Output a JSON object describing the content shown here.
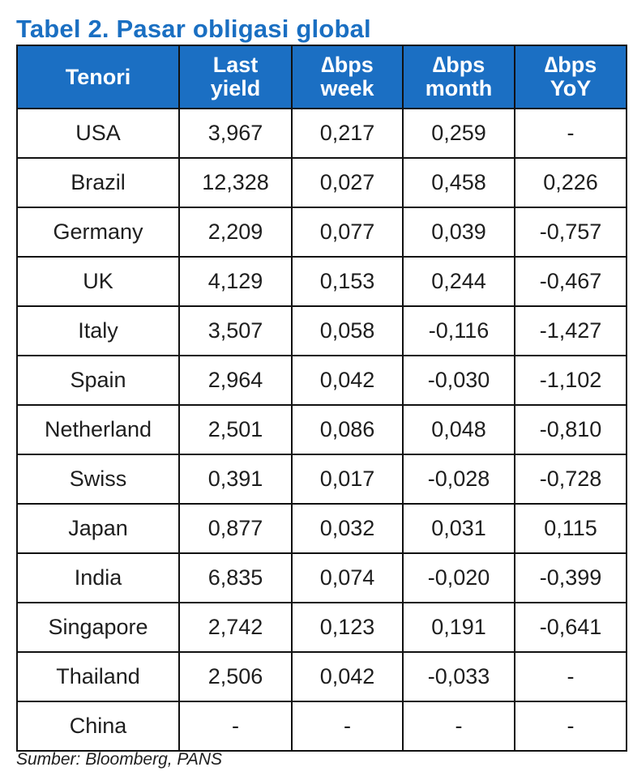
{
  "title": "Tabel 2. Pasar obligasi global",
  "colors": {
    "title": "#1a6fc2",
    "header_bg": "#1b6fc3",
    "header_text": "#ffffff",
    "border": "#111111"
  },
  "table": {
    "headers": [
      [
        "Tenori"
      ],
      [
        "Last",
        "yield"
      ],
      [
        "∆bps",
        "week"
      ],
      [
        "∆bps",
        "month"
      ],
      [
        "∆bps",
        "YoY"
      ]
    ],
    "rows": [
      [
        "USA",
        "3,967",
        "0,217",
        "0,259",
        "-"
      ],
      [
        "Brazil",
        "12,328",
        "0,027",
        "0,458",
        "0,226"
      ],
      [
        "Germany",
        "2,209",
        "0,077",
        "0,039",
        "-0,757"
      ],
      [
        "UK",
        "4,129",
        "0,153",
        "0,244",
        "-0,467"
      ],
      [
        "Italy",
        "3,507",
        "0,058",
        "-0,116",
        "-1,427"
      ],
      [
        "Spain",
        "2,964",
        "0,042",
        "-0,030",
        "-1,102"
      ],
      [
        "Netherland",
        "2,501",
        "0,086",
        "0,048",
        "-0,810"
      ],
      [
        "Swiss",
        "0,391",
        "0,017",
        "-0,028",
        "-0,728"
      ],
      [
        "Japan",
        "0,877",
        "0,032",
        "0,031",
        "0,115"
      ],
      [
        "India",
        "6,835",
        "0,074",
        "-0,020",
        "-0,399"
      ],
      [
        "Singapore",
        "2,742",
        "0,123",
        "0,191",
        "-0,641"
      ],
      [
        "Thailand",
        "2,506",
        "0,042",
        "-0,033",
        "-"
      ],
      [
        "China",
        "-",
        "-",
        "-",
        "-"
      ]
    ]
  },
  "source": "Sumber: Bloomberg, PANS"
}
